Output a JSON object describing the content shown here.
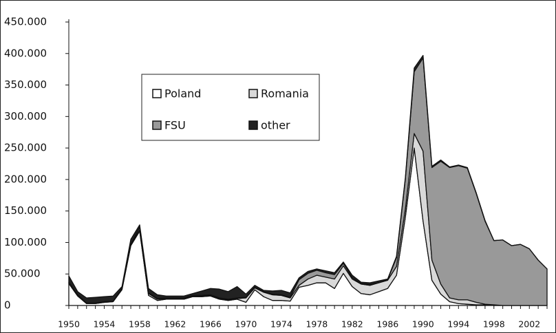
{
  "chart_data": {
    "type": "stacked-area",
    "categories": [
      "1950",
      null,
      null,
      null,
      "1954",
      null,
      null,
      null,
      "1958",
      null,
      null,
      null,
      "1962",
      null,
      null,
      null,
      "1966",
      null,
      null,
      null,
      "1970",
      null,
      null,
      null,
      "1974",
      null,
      null,
      null,
      "1978",
      null,
      null,
      null,
      "1982",
      null,
      null,
      null,
      "1986",
      null,
      null,
      null,
      "1990",
      null,
      null,
      null,
      "1994",
      null,
      null,
      null,
      "1998",
      null,
      null,
      null,
      "2002",
      null,
      null
    ],
    "series": [
      {
        "name": "Poland",
        "color": "#ffffff",
        "values": [
          35000,
          15000,
          3000,
          3000,
          5000,
          6000,
          25000,
          95000,
          118000,
          16000,
          8000,
          10000,
          10000,
          10000,
          14000,
          14000,
          15000,
          10000,
          8000,
          10000,
          5000,
          25000,
          14000,
          8000,
          8000,
          7000,
          29000,
          32000,
          36000,
          36000,
          27000,
          51000,
          30000,
          19000,
          17000,
          22000,
          27000,
          48000,
          140000,
          250000,
          134000,
          40000,
          18000,
          6000,
          3000,
          2000,
          1000,
          1000,
          0,
          0,
          0,
          0,
          0,
          0,
          0
        ]
      },
      {
        "name": "Romania",
        "color": "#d9d9d9",
        "values": [
          1000,
          1000,
          1000,
          1000,
          1000,
          1000,
          1000,
          1000,
          2000,
          3000,
          2000,
          1000,
          1000,
          1000,
          1000,
          1000,
          1000,
          1000,
          1000,
          1000,
          7000,
          3000,
          7000,
          9000,
          8000,
          5000,
          3000,
          10000,
          12000,
          9000,
          15000,
          12000,
          12000,
          15000,
          15000,
          14000,
          13000,
          14000,
          13000,
          23000,
          111000,
          32000,
          16000,
          6000,
          6000,
          7000,
          4000,
          1000,
          1000,
          0,
          0,
          0,
          0,
          0,
          0
        ]
      },
      {
        "name": "FSU",
        "color": "#999999",
        "values": [
          1000,
          1000,
          0,
          0,
          0,
          0,
          1000,
          1000,
          4000,
          1000,
          1000,
          1000,
          1000,
          1000,
          1000,
          1000,
          1000,
          1000,
          1000,
          1000,
          1000,
          1000,
          1000,
          1000,
          1000,
          1000,
          9000,
          9000,
          8000,
          7000,
          7000,
          4000,
          2000,
          1000,
          1000,
          0,
          1000,
          14000,
          48000,
          98000,
          148000,
          147000,
          195000,
          207000,
          213000,
          209000,
          173000,
          132000,
          102000,
          104000,
          95000,
          97000,
          90000,
          72000,
          58000
        ]
      },
      {
        "name": "other",
        "color": "#222222",
        "values": [
          10000,
          5000,
          8000,
          9000,
          8000,
          8000,
          3000,
          8000,
          4000,
          7000,
          6000,
          3000,
          3000,
          3000,
          3000,
          7000,
          10000,
          14000,
          12000,
          18000,
          5000,
          3000,
          2000,
          5000,
          7000,
          7000,
          3000,
          3000,
          2000,
          3000,
          3000,
          2000,
          4000,
          2000,
          3000,
          3000,
          1000,
          2000,
          2000,
          6000,
          4000,
          2000,
          2000,
          1000,
          1000,
          1000,
          1000,
          1000,
          0,
          0,
          0,
          0,
          0,
          0,
          0
        ]
      }
    ],
    "ylim": [
      0,
      450000
    ],
    "yticks": [
      0,
      {
        "value": 50000,
        "label": "50.000"
      },
      {
        "value": 100000,
        "label": "100.000"
      },
      {
        "value": 150000,
        "label": "150.000"
      },
      {
        "value": 200000,
        "label": "200.000"
      },
      {
        "value": 250000,
        "label": "250.000"
      },
      {
        "value": 300000,
        "label": "300.000"
      },
      {
        "value": 350000,
        "label": "350.000"
      },
      {
        "value": 400000,
        "label": "400.000"
      },
      {
        "value": 450000,
        "label": "450.000"
      }
    ],
    "grid": false
  }
}
